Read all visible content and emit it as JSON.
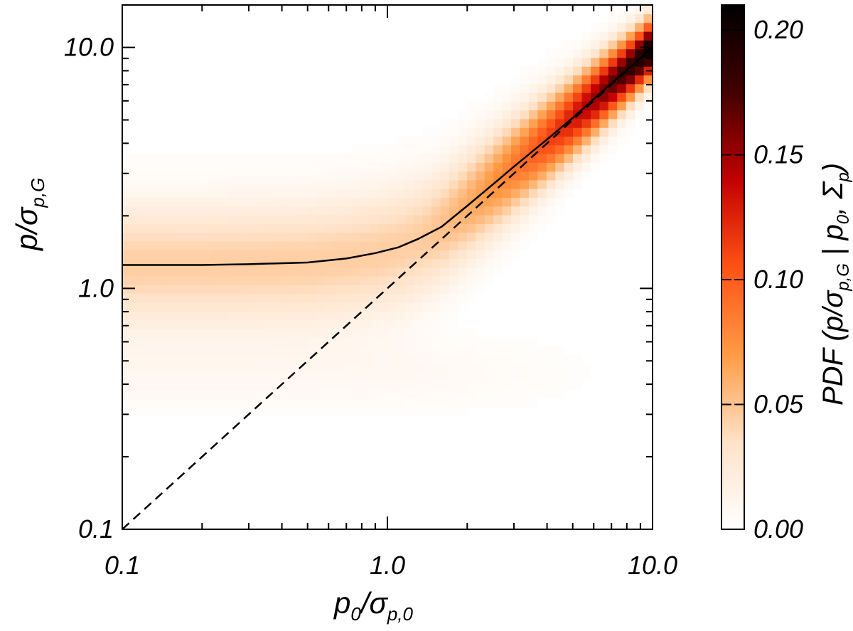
{
  "chart_data": {
    "type": "heatmap",
    "title": "",
    "xscale": "log",
    "yscale": "log",
    "xlim": [
      0.1,
      10.0
    ],
    "ylim": [
      0.1,
      15.0
    ],
    "x_ticks": [
      0.1,
      1.0,
      10.0
    ],
    "y_ticks": [
      0.1,
      1.0,
      10.0
    ],
    "x_tick_labels": [
      "0.1",
      "1.0",
      "10.0"
    ],
    "y_tick_labels": [
      "0.1",
      "1.0",
      "10.0"
    ],
    "xlabel": {
      "main": "p",
      "sub0": "0",
      "divider": "/σ",
      "sub1": "p,0"
    },
    "ylabel": {
      "main": "p",
      "divider": "/σ",
      "sub": "p,G"
    },
    "colorbar": {
      "range": [
        0.0,
        0.21
      ],
      "ticks": [
        0.0,
        0.05,
        0.1,
        0.15,
        0.2
      ],
      "tick_labels": [
        "0.00",
        "0.05",
        "0.10",
        "0.15",
        "0.20"
      ],
      "label": {
        "prefix": "PDF (p/σ",
        "sub1": "p,G",
        "mid": " | p",
        "sub2": "0",
        "sep": ", Σ",
        "sub3": "p",
        "suffix": ")"
      },
      "colormap": [
        "#ffffff",
        "#ffe2c8",
        "#ff9b45",
        "#ff5216",
        "#c20000",
        "#420000",
        "#000000"
      ]
    },
    "series": [
      {
        "style": "solid",
        "x": [
          0.1,
          0.2,
          0.3,
          0.5,
          0.7,
          0.9,
          1.1,
          1.3,
          1.6,
          2.0,
          2.5,
          3.0,
          4.0,
          5.0,
          6.0,
          7.0,
          8.5,
          10.0
        ],
        "y": [
          1.25,
          1.25,
          1.26,
          1.28,
          1.33,
          1.4,
          1.48,
          1.6,
          1.8,
          2.2,
          2.7,
          3.2,
          4.15,
          5.1,
          6.1,
          7.1,
          8.55,
          10.05
        ]
      },
      {
        "style": "dashed",
        "x": [
          0.1,
          10.0
        ],
        "y": [
          0.1,
          10.0
        ]
      }
    ],
    "density": {
      "low_band": {
        "x_range": [
          0.1,
          1.3
        ],
        "y_center": 1.25,
        "y_width_log": 0.18,
        "peak": 0.045
      },
      "ridge": {
        "peak_start": 0.035,
        "peak_end": 0.21
      }
    }
  }
}
